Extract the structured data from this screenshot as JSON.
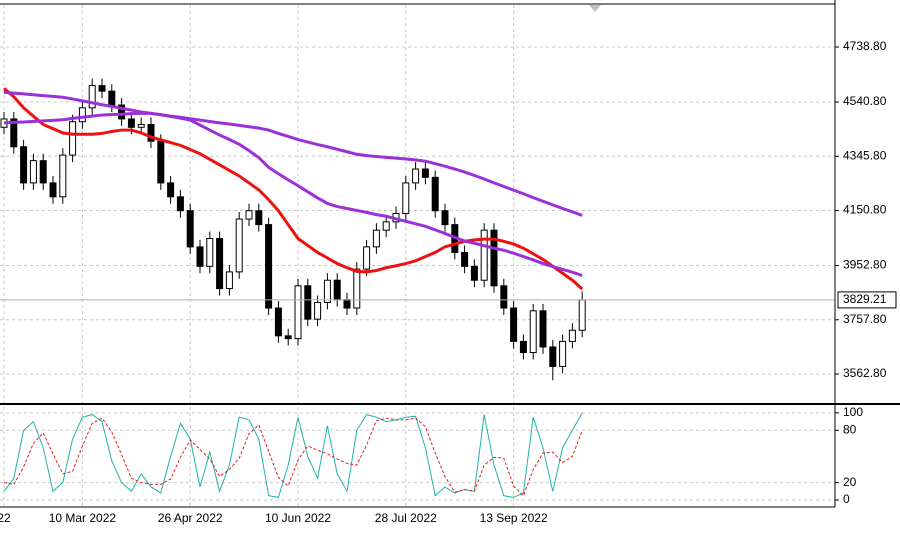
{
  "chart_data": [
    {
      "type": "candlestick",
      "categories": [
        "22",
        null,
        null,
        null,
        null,
        null,
        null,
        null,
        "10 Mar 2022",
        null,
        null,
        null,
        null,
        null,
        null,
        null,
        null,
        null,
        null,
        "26 Apr 2022",
        null,
        null,
        null,
        null,
        null,
        null,
        null,
        null,
        null,
        null,
        "10 Jun 2022",
        null,
        null,
        null,
        null,
        null,
        null,
        null,
        null,
        null,
        null,
        "28 Jul 2022",
        null,
        null,
        null,
        null,
        null,
        null,
        null,
        null,
        null,
        null,
        "13 Sep 2022",
        null,
        null,
        null,
        null,
        null,
        null,
        null
      ],
      "open": [
        4450,
        4480,
        4380,
        4250,
        4330,
        4250,
        4200,
        4350,
        4470,
        4520,
        4600,
        4580,
        4530,
        4480,
        4450,
        4460,
        4400,
        4250,
        4200,
        4150,
        4020,
        3950,
        4050,
        3870,
        3930,
        4120,
        4150,
        4100,
        3800,
        3700,
        3690,
        3880,
        3760,
        3820,
        3900,
        3830,
        3800,
        3940,
        4020,
        4080,
        4110,
        4140,
        4250,
        4300,
        4270,
        4150,
        4100,
        4000,
        3950,
        3900,
        4080,
        3880,
        3800,
        3680,
        3640,
        3790,
        3660,
        3590,
        3680,
        3720
      ],
      "high": [
        4505,
        4505,
        4405,
        4355,
        4355,
        4275,
        4375,
        4495,
        4545,
        4625,
        4625,
        4605,
        4555,
        4505,
        4485,
        4485,
        4425,
        4275,
        4225,
        4175,
        4045,
        4075,
        4075,
        3955,
        4145,
        4175,
        4175,
        4125,
        3825,
        3725,
        3905,
        3905,
        3845,
        3925,
        3925,
        3855,
        3965,
        4045,
        4105,
        4135,
        4165,
        4275,
        4325,
        4325,
        4295,
        4175,
        4125,
        4025,
        3975,
        4105,
        4105,
        3905,
        3825,
        3705,
        3815,
        3815,
        3685,
        3705,
        3745,
        3860
      ],
      "low": [
        4425,
        4355,
        4225,
        4225,
        4225,
        4175,
        4175,
        4325,
        4445,
        4495,
        4555,
        4505,
        4455,
        4425,
        4425,
        4375,
        4225,
        4175,
        4125,
        3995,
        3925,
        3925,
        3845,
        3845,
        3905,
        4095,
        4075,
        3775,
        3675,
        3665,
        3665,
        3735,
        3735,
        3795,
        3805,
        3775,
        3775,
        3915,
        3995,
        4055,
        4085,
        4115,
        4225,
        4245,
        4125,
        4075,
        3975,
        3925,
        3875,
        3875,
        3855,
        3775,
        3655,
        3615,
        3615,
        3635,
        3540,
        3565,
        3655,
        3695
      ],
      "close": [
        4480,
        4380,
        4250,
        4330,
        4250,
        4200,
        4350,
        4470,
        4520,
        4600,
        4580,
        4530,
        4480,
        4450,
        4460,
        4400,
        4250,
        4200,
        4150,
        4020,
        3950,
        4050,
        3870,
        3930,
        4120,
        4150,
        4100,
        3800,
        3700,
        3690,
        3880,
        3760,
        3820,
        3900,
        3830,
        3800,
        3940,
        4020,
        4080,
        4110,
        4140,
        4250,
        4300,
        4270,
        4150,
        4100,
        4000,
        3950,
        3900,
        4080,
        3880,
        3800,
        3680,
        3640,
        3790,
        3660,
        3590,
        3680,
        3720,
        3829.21
      ],
      "up_color": "#ffffff",
      "down_color": "#000000",
      "wick_color": "#000000",
      "series": [
        {
          "color": "#ee1111",
          "values": [
            4590,
            4560,
            4520,
            4490,
            4460,
            4445,
            4430,
            4425,
            4425,
            4425,
            4428,
            4435,
            4440,
            4440,
            4430,
            4415,
            4405,
            4395,
            4385,
            4370,
            4355,
            4335,
            4315,
            4295,
            4275,
            4250,
            4225,
            4190,
            4150,
            4100,
            4050,
            4025,
            4000,
            3980,
            3960,
            3945,
            3932,
            3930,
            3935,
            3945,
            3952,
            3960,
            3970,
            3985,
            4000,
            4020,
            4030,
            4040,
            4045,
            4048,
            4048,
            4040,
            4030,
            4015,
            3995,
            3975,
            3950,
            3925,
            3900,
            3868
          ]
        },
        {
          "color": "#9b30d9",
          "values": [
            4466,
            4468,
            4469,
            4471,
            4473,
            4475,
            4477,
            4482,
            4486,
            4490,
            4494,
            4496,
            4497,
            4499,
            4500,
            4500,
            4495,
            4489,
            4483,
            4476,
            4458,
            4440,
            4422,
            4406,
            4389,
            4366,
            4341,
            4306,
            4283,
            4261,
            4240,
            4218,
            4196,
            4176,
            4165,
            4158,
            4151,
            4144,
            4136,
            4130,
            4121,
            4112,
            4103,
            4094,
            4081,
            4068,
            4054,
            4041,
            4033,
            4024,
            4015,
            4008,
            3997,
            3985,
            3973,
            3960,
            3949,
            3939,
            3929,
            3917
          ]
        },
        {
          "color": "#9b30d9",
          "values": [
            4576,
            4573,
            4570,
            4567,
            4564,
            4561,
            4558,
            4552,
            4545,
            4538,
            4531,
            4525,
            4518,
            4512,
            4505,
            4500,
            4495,
            4490,
            4486,
            4481,
            4476,
            4471,
            4466,
            4462,
            4457,
            4452,
            4447,
            4440,
            4428,
            4417,
            4406,
            4397,
            4388,
            4380,
            4371,
            4362,
            4353,
            4348,
            4345,
            4342,
            4339,
            4336,
            4333,
            4328,
            4319,
            4310,
            4300,
            4289,
            4277,
            4264,
            4250,
            4237,
            4224,
            4211,
            4197,
            4184,
            4171,
            4158,
            4146,
            4133
          ]
        }
      ],
      "last_price": 3829.21,
      "ylim": [
        3458.5,
        4889.8
      ],
      "yticks": [
        {
          "value": 3562.8,
          "label": "3562.80"
        },
        {
          "value": 3757.8,
          "label": "3757.80"
        },
        {
          "value": 3952.8,
          "label": "3952.80"
        },
        {
          "value": 4150.8,
          "label": "4150.80"
        },
        {
          "value": 4345.8,
          "label": "4345.80"
        },
        {
          "value": 4540.8,
          "label": "4540.80"
        },
        {
          "value": 4738.8,
          "label": "4738.80"
        }
      ],
      "grid": true
    },
    {
      "type": "line",
      "series": [
        {
          "color": "#20b2aa",
          "dashed": false,
          "values": [
            10,
            25,
            80,
            90,
            60,
            10,
            20,
            70,
            95,
            98,
            90,
            45,
            20,
            10,
            30,
            15,
            8,
            50,
            88,
            70,
            15,
            55,
            10,
            40,
            95,
            92,
            70,
            5,
            3,
            40,
            95,
            50,
            25,
            85,
            30,
            10,
            80,
            98,
            95,
            90,
            92,
            95,
            96,
            60,
            5,
            15,
            8,
            12,
            10,
            98,
            40,
            5,
            3,
            8,
            95,
            60,
            10,
            60,
            80,
            100
          ]
        },
        {
          "color": "#e02020",
          "dashed": true,
          "values": [
            20,
            18,
            38,
            65,
            77,
            53,
            30,
            33,
            62,
            88,
            94,
            78,
            52,
            25,
            20,
            18,
            18,
            24,
            49,
            69,
            58,
            47,
            27,
            35,
            48,
            76,
            86,
            56,
            26,
            16,
            46,
            62,
            57,
            53,
            47,
            42,
            40,
            63,
            91,
            94,
            92,
            92,
            94,
            84,
            54,
            27,
            9,
            12,
            10,
            40,
            49,
            48,
            16,
            5,
            35,
            54,
            55,
            43,
            50,
            80
          ]
        }
      ],
      "ylim": [
        -8,
        109
      ],
      "yticks": [
        0,
        20,
        80,
        100
      ],
      "grid": true
    }
  ]
}
